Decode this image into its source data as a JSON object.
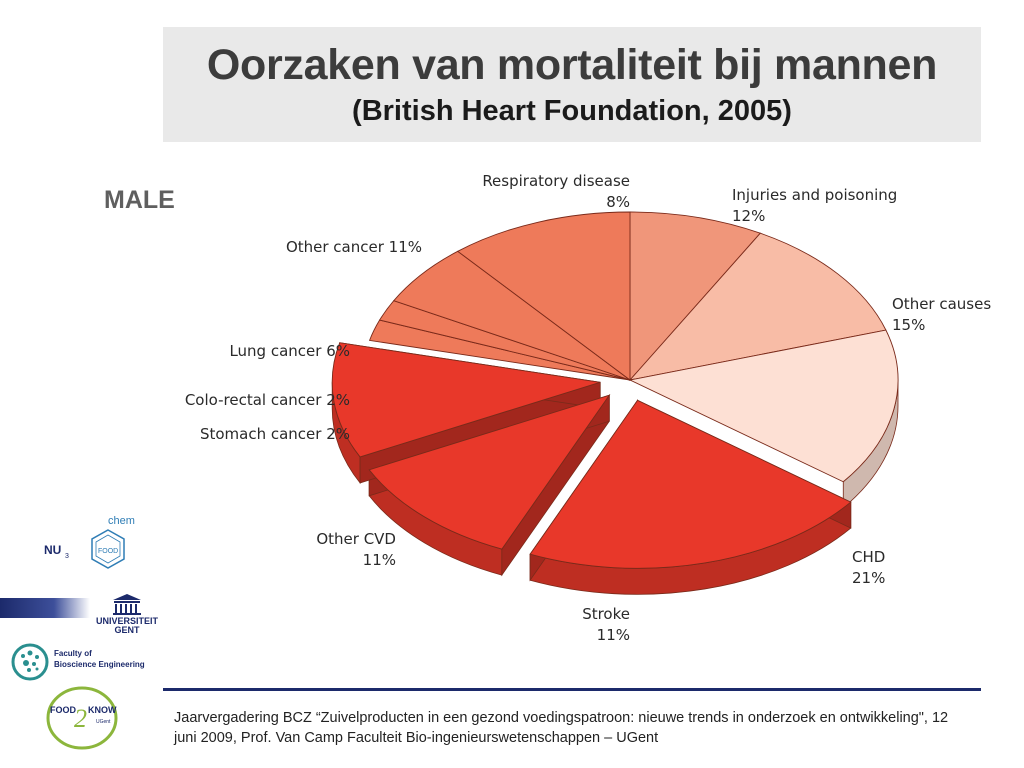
{
  "slide": {
    "title": "Oorzaken van mortaliteit bij mannen",
    "subtitle": "(British Heart Foundation, 2005)",
    "panel_label": "MALE",
    "footer": "Jaarvergadering BCZ “Zuivelproducten in een gezond voedingspatroon: nieuwe trends in onderzoek en ontwikkeling\", 12 juni 2009, Prof. Van Camp  Faculteit Bio-ingenieurswetenschappen – UGent"
  },
  "logos": {
    "nu_food": {
      "left": "NU",
      "sub": "3",
      "box": "FOOD",
      "top": "chem"
    },
    "ugent": {
      "line1": "UNIVERSITEIT",
      "line2": "GENT"
    },
    "bioscience": {
      "line1": "Faculty of",
      "line2": "Bioscience Engineering"
    },
    "food2know": {
      "line1": "FOOD",
      "two": "2",
      "line2": "KNOW",
      "line3": "UGent"
    }
  },
  "chart_data": {
    "type": "pie",
    "style": "3d-exploded",
    "title": "",
    "slices": [
      {
        "label": "Respiratory disease",
        "pct_label": "8%",
        "value": 8,
        "color": "#f0967a",
        "exploded": false
      },
      {
        "label": "Injuries and poisoning",
        "pct_label": "12%",
        "value": 12,
        "color": "#f8bca6",
        "exploded": false
      },
      {
        "label": "Other causes",
        "pct_label": "15%",
        "value": 15,
        "color": "#fde0d4",
        "exploded": false
      },
      {
        "label": "CHD",
        "pct_label": "21%",
        "value": 21,
        "color": "#e8382a",
        "exploded": true
      },
      {
        "label": "Stroke",
        "pct_label": "11%",
        "value": 11,
        "color": "#e8382a",
        "exploded": true
      },
      {
        "label": "Other CVD",
        "pct_label": "11%",
        "value": 11,
        "color": "#e8382a",
        "exploded": true
      },
      {
        "label": "Stomach cancer",
        "pct_label": "2%",
        "value": 2,
        "color": "#ee7a5a",
        "exploded": false
      },
      {
        "label": "Colo-rectal cancer",
        "pct_label": "2%",
        "value": 2,
        "color": "#ee7a5a",
        "exploded": false
      },
      {
        "label": "Lung cancer",
        "pct_label": "6%",
        "value": 6,
        "color": "#ee7a5a",
        "exploded": false
      },
      {
        "label": "Other cancer",
        "pct_label": "11%",
        "value": 11,
        "color": "#ee7a5a",
        "exploded": false
      }
    ]
  }
}
